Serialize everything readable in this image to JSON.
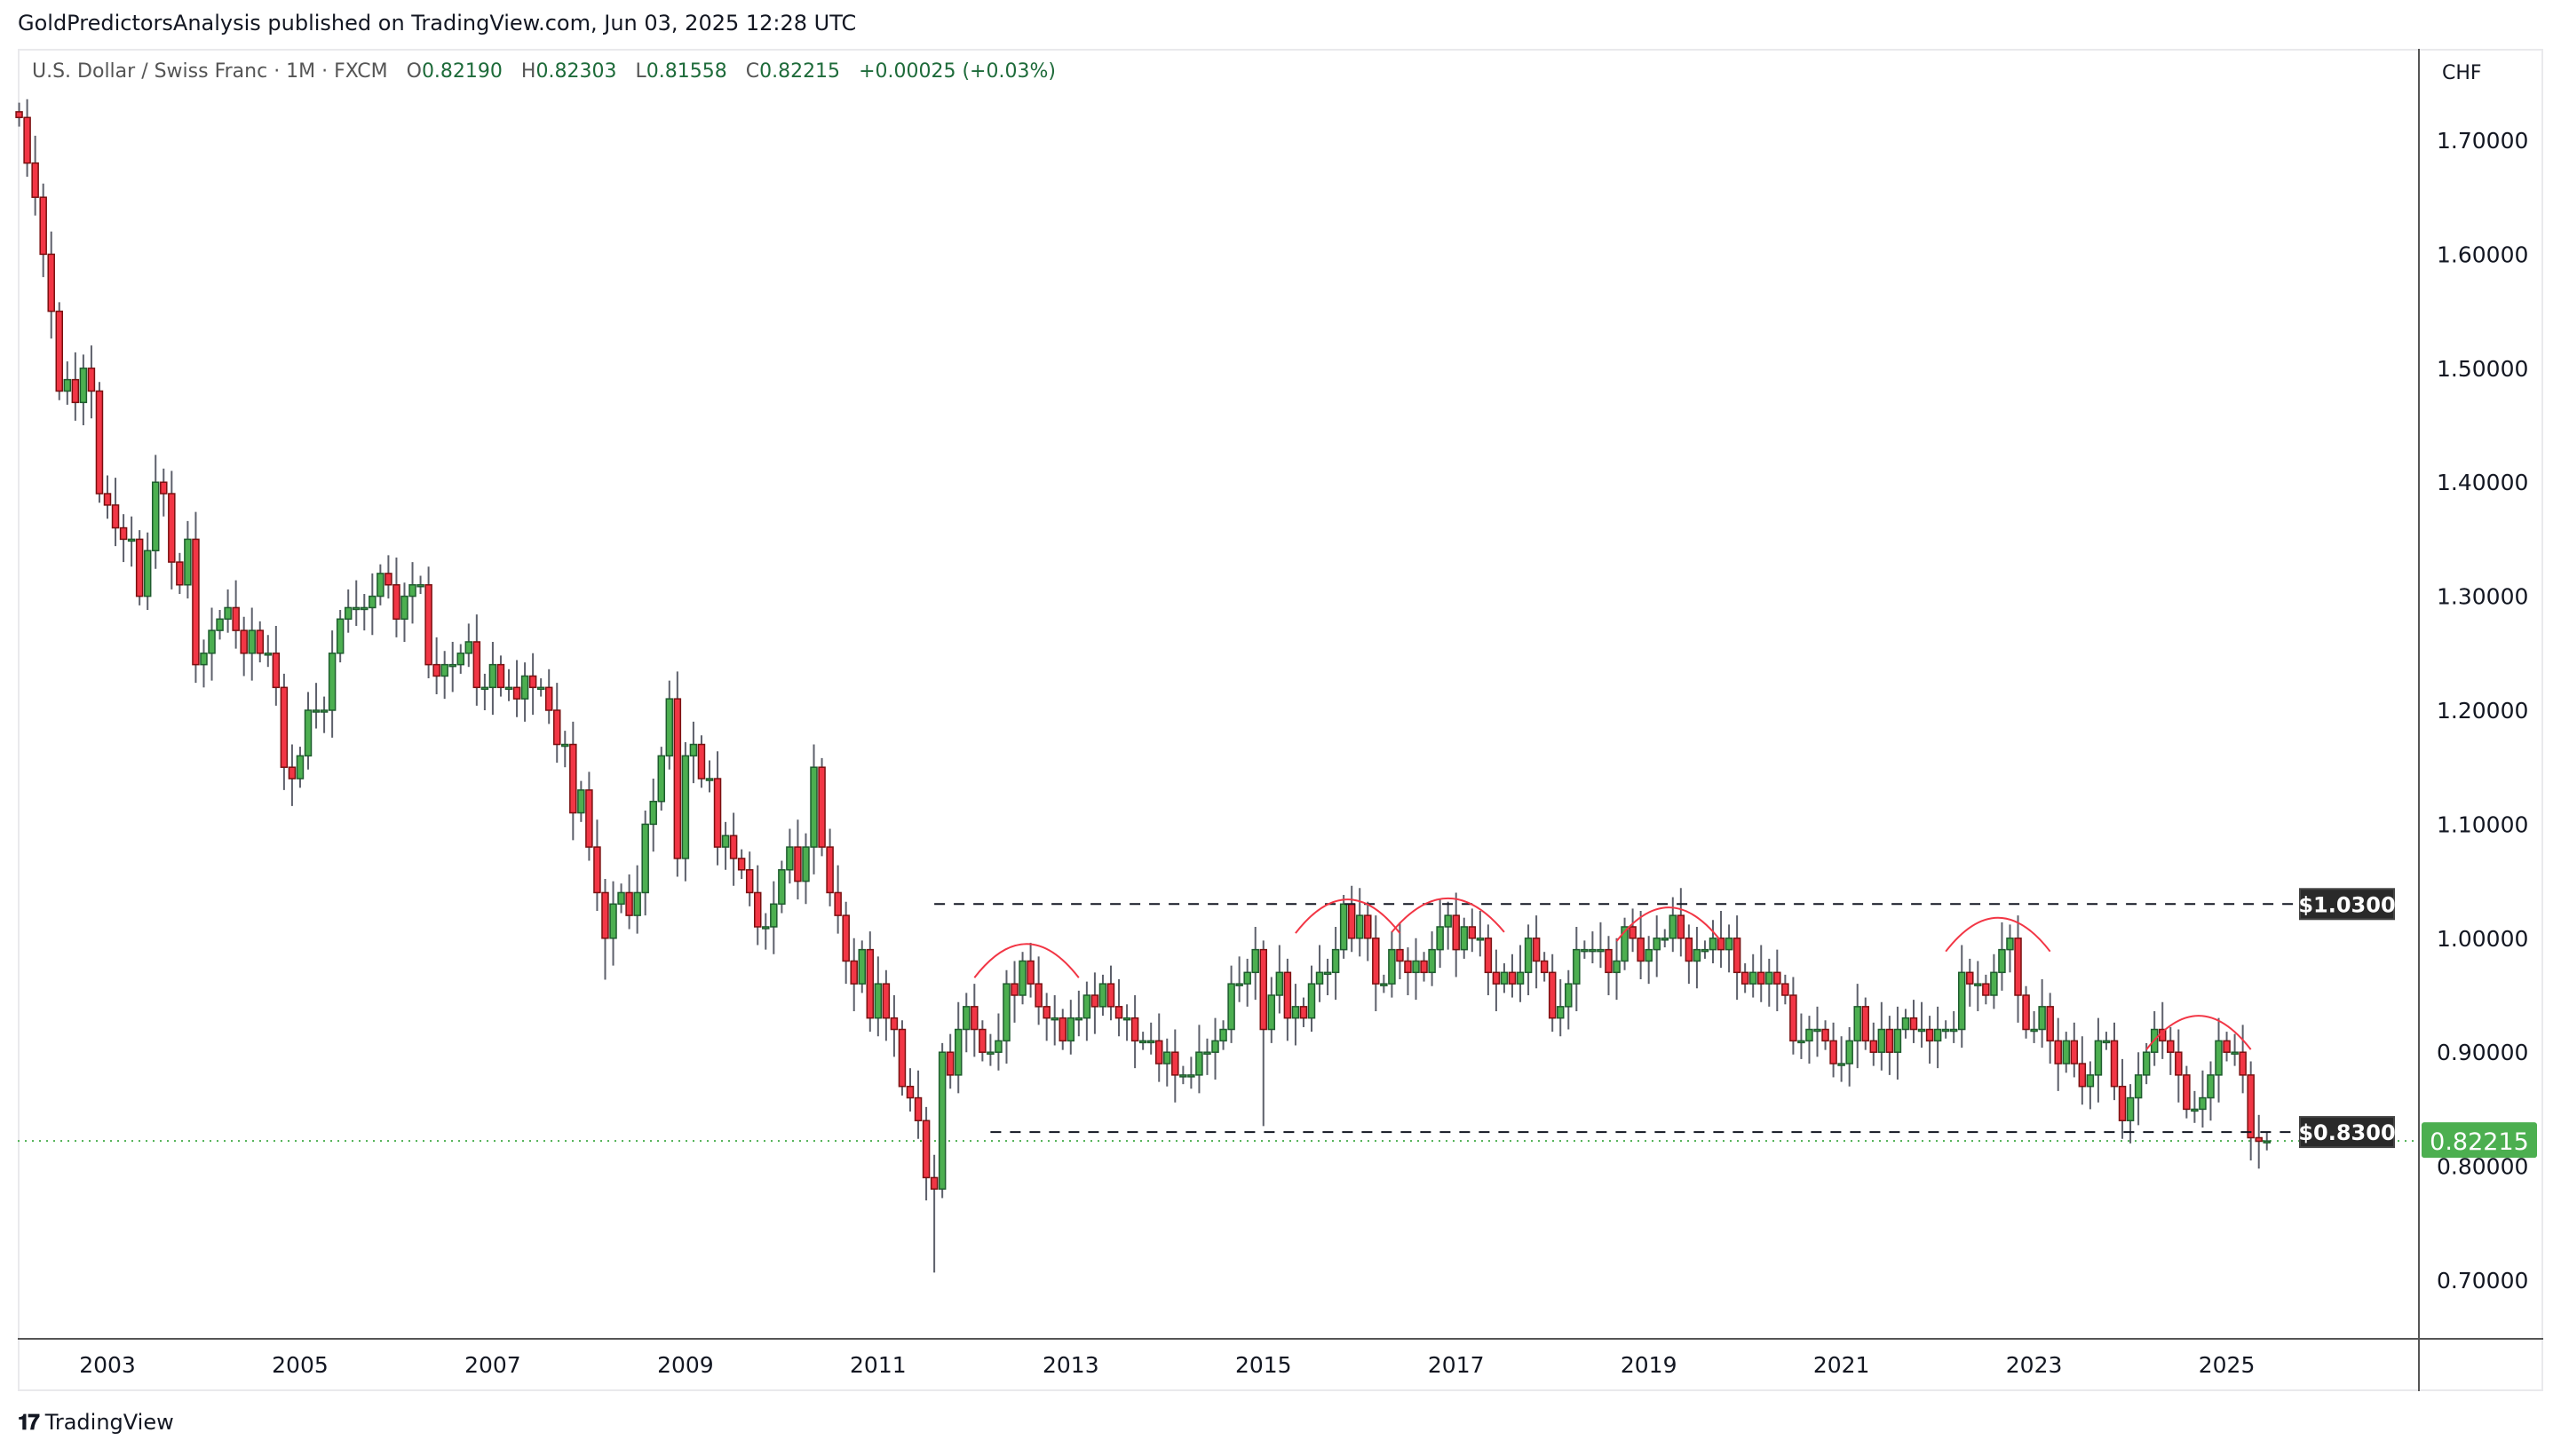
{
  "header": {
    "published": "GoldPredictorsAnalysis published on TradingView.com, Jun 03, 2025 12:28 UTC"
  },
  "legend": {
    "symbol": "U.S. Dollar / Swiss Franc · 1M · FXCM",
    "open_label": "O",
    "open": "0.82190",
    "high_label": "H",
    "high": "0.82303",
    "low_label": "L",
    "low": "0.81558",
    "close_label": "C",
    "close": "0.82215",
    "change": "+0.00025 (+0.03%)"
  },
  "price_axis": {
    "currency": "CHF"
  },
  "footer": {
    "brand": "TradingView"
  },
  "colors": {
    "up": "#4caf50",
    "down": "#f23645",
    "up_border": "#1e5c2e",
    "down_border": "#7a1010",
    "arc": "#f23645",
    "label_bg": "#2a2a2a",
    "last_price": "#4caf50"
  },
  "chart_data": {
    "type": "candlestick",
    "title": "U.S. Dollar / Swiss Franc · 1M · FXCM",
    "interval": "monthly",
    "start_month": "2002-02",
    "closes": [
      1.72,
      1.68,
      1.65,
      1.6,
      1.55,
      1.48,
      1.49,
      1.47,
      1.5,
      1.48,
      1.39,
      1.38,
      1.36,
      1.35,
      1.35,
      1.3,
      1.34,
      1.4,
      1.39,
      1.33,
      1.31,
      1.35,
      1.24,
      1.25,
      1.27,
      1.28,
      1.29,
      1.27,
      1.25,
      1.27,
      1.25,
      1.25,
      1.22,
      1.15,
      1.14,
      1.16,
      1.2,
      1.2,
      1.2,
      1.25,
      1.28,
      1.29,
      1.29,
      1.29,
      1.3,
      1.32,
      1.31,
      1.28,
      1.3,
      1.31,
      1.31,
      1.24,
      1.23,
      1.24,
      1.24,
      1.25,
      1.26,
      1.22,
      1.22,
      1.24,
      1.22,
      1.22,
      1.21,
      1.23,
      1.22,
      1.22,
      1.2,
      1.17,
      1.17,
      1.11,
      1.13,
      1.08,
      1.04,
      1.0,
      1.03,
      1.04,
      1.02,
      1.04,
      1.1,
      1.12,
      1.16,
      1.21,
      1.07,
      1.16,
      1.17,
      1.14,
      1.14,
      1.08,
      1.09,
      1.07,
      1.06,
      1.04,
      1.01,
      1.01,
      1.03,
      1.06,
      1.08,
      1.05,
      1.08,
      1.15,
      1.08,
      1.04,
      1.02,
      0.98,
      0.96,
      0.99,
      0.93,
      0.96,
      0.93,
      0.92,
      0.87,
      0.86,
      0.84,
      0.79,
      0.78,
      0.9,
      0.88,
      0.92,
      0.94,
      0.92,
      0.9,
      0.9,
      0.91,
      0.96,
      0.95,
      0.98,
      0.96,
      0.94,
      0.93,
      0.93,
      0.91,
      0.93,
      0.93,
      0.95,
      0.94,
      0.96,
      0.94,
      0.93,
      0.93,
      0.91,
      0.91,
      0.91,
      0.89,
      0.9,
      0.88,
      0.88,
      0.88,
      0.9,
      0.9,
      0.91,
      0.92,
      0.96,
      0.96,
      0.97,
      0.99,
      0.92,
      0.95,
      0.97,
      0.93,
      0.94,
      0.93,
      0.96,
      0.97,
      0.97,
      0.99,
      1.03,
      1.0,
      1.02,
      1.0,
      0.96,
      0.96,
      0.99,
      0.98,
      0.97,
      0.98,
      0.97,
      0.99,
      1.01,
      1.02,
      0.99,
      1.01,
      1.0,
      1.0,
      0.97,
      0.96,
      0.97,
      0.96,
      0.97,
      1.0,
      0.98,
      0.97,
      0.93,
      0.94,
      0.96,
      0.99,
      0.99,
      0.99,
      0.99,
      0.97,
      0.98,
      1.01,
      1.0,
      0.98,
      0.99,
      1.0,
      1.0,
      1.02,
      1.0,
      0.98,
      0.99,
      0.99,
      1.0,
      0.99,
      1.0,
      0.97,
      0.96,
      0.97,
      0.96,
      0.97,
      0.96,
      0.95,
      0.91,
      0.91,
      0.92,
      0.92,
      0.91,
      0.89,
      0.89,
      0.91,
      0.94,
      0.91,
      0.9,
      0.92,
      0.9,
      0.92,
      0.93,
      0.92,
      0.92,
      0.91,
      0.92,
      0.92,
      0.92,
      0.97,
      0.96,
      0.96,
      0.95,
      0.97,
      0.99,
      1.0,
      0.95,
      0.92,
      0.92,
      0.94,
      0.91,
      0.89,
      0.91,
      0.89,
      0.87,
      0.88,
      0.91,
      0.91,
      0.87,
      0.84,
      0.86,
      0.88,
      0.9,
      0.92,
      0.91,
      0.9,
      0.88,
      0.85,
      0.85,
      0.86,
      0.88,
      0.91,
      0.9,
      0.9,
      0.88,
      0.825,
      0.8219,
      0.82215
    ],
    "wick_extremes": [
      {
        "month": "2011-08",
        "low": 0.7067
      },
      {
        "month": "2015-01",
        "low": 0.8352
      },
      {
        "month": "2008-03",
        "low": 0.9636
      }
    ],
    "x_ticks": [
      "2003",
      "2005",
      "2007",
      "2009",
      "2011",
      "2013",
      "2015",
      "2017",
      "2019",
      "2021",
      "2023",
      "2025"
    ],
    "y_ticks": [
      "1.70000",
      "1.60000",
      "1.50000",
      "1.40000",
      "1.30000",
      "1.20000",
      "1.10000",
      "1.00000",
      "0.90000",
      "0.80000",
      "0.70000"
    ],
    "ylim": [
      0.65,
      1.74
    ],
    "last_price": {
      "value": 0.82215,
      "label": "0.82215"
    },
    "levels": [
      {
        "price": 1.03,
        "label": "$1.0300",
        "from": "2011-08",
        "to": "2025-09"
      },
      {
        "price": 0.83,
        "label": "$0.8300",
        "from": "2012-03",
        "to": "2025-09"
      }
    ],
    "arcs": [
      {
        "from": "2012-01",
        "to": "2013-02",
        "peak": 0.995
      },
      {
        "from": "2015-05",
        "to": "2016-06",
        "peak": 1.034
      },
      {
        "from": "2016-05",
        "to": "2017-07",
        "peak": 1.035
      },
      {
        "from": "2018-09",
        "to": "2019-10",
        "peak": 1.027
      },
      {
        "from": "2022-02",
        "to": "2023-03",
        "peak": 1.018
      },
      {
        "from": "2024-03",
        "to": "2025-04",
        "peak": 0.932
      }
    ]
  }
}
